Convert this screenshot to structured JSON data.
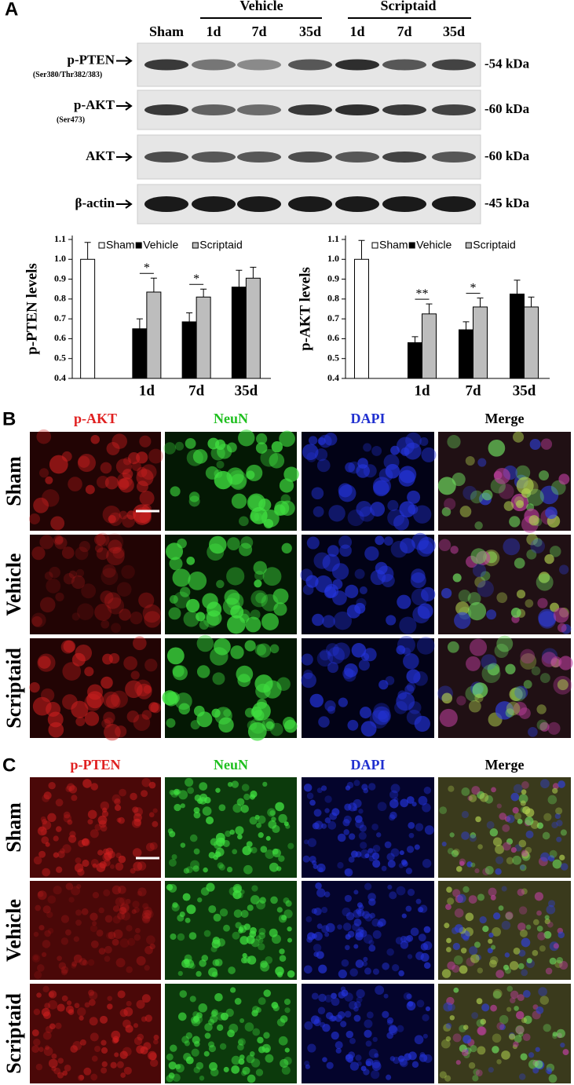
{
  "panel_a": {
    "label": "A",
    "groups": [
      "Vehicle",
      "Scriptaid"
    ],
    "lanes": [
      "Sham",
      "1d",
      "7d",
      "35d",
      "1d",
      "7d",
      "35d"
    ],
    "blots": [
      {
        "name": "p-PTEN",
        "site": "(Ser380/Thr382/383)",
        "size": "-54 kDa"
      },
      {
        "name": "p-AKT",
        "site": "(Ser473)",
        "size": "-60 kDa"
      },
      {
        "name": "AKT",
        "size": "-60 kDa"
      },
      {
        "name": "β-actin",
        "size": "-45 kDa"
      }
    ]
  },
  "chart_data": [
    {
      "type": "bar",
      "ylabel": "p-PTEN levels",
      "categories": [
        null,
        "1d",
        "7d",
        "35d"
      ],
      "series": [
        {
          "name": "Sham",
          "color": "#ffffff",
          "values": [
            1.0,
            null,
            null,
            null
          ],
          "errors": [
            0.085,
            null,
            null,
            null
          ]
        },
        {
          "name": "Vehicle",
          "color": "#000000",
          "values": [
            null,
            0.65,
            0.685,
            0.86
          ],
          "errors": [
            null,
            0.05,
            0.045,
            0.085
          ]
        },
        {
          "name": "Scriptaid",
          "color": "#bdbdbd",
          "values": [
            null,
            0.835,
            0.81,
            0.905
          ],
          "errors": [
            null,
            0.07,
            0.04,
            0.055
          ]
        }
      ],
      "significance": [
        null,
        "*",
        "*",
        null
      ],
      "ylim": [
        0.4,
        1.1
      ],
      "yticks": [
        0.4,
        0.5,
        0.6,
        0.7,
        0.8,
        0.9,
        {
          "value": 1,
          "label": "1.0"
        },
        1.1
      ],
      "legend": "top"
    },
    {
      "type": "bar",
      "ylabel": "p-AKT levels",
      "categories": [
        null,
        "1d",
        "7d",
        "35d"
      ],
      "series": [
        {
          "name": "Sham",
          "color": "#ffffff",
          "values": [
            1.0,
            null,
            null,
            null
          ],
          "errors": [
            0.095,
            null,
            null,
            null
          ]
        },
        {
          "name": "Vehicle",
          "color": "#000000",
          "values": [
            null,
            0.58,
            0.645,
            0.825
          ],
          "errors": [
            null,
            0.03,
            0.04,
            0.07
          ]
        },
        {
          "name": "Scriptaid",
          "color": "#bdbdbd",
          "values": [
            null,
            0.725,
            0.76,
            0.76
          ],
          "errors": [
            null,
            0.05,
            0.045,
            0.05
          ]
        }
      ],
      "significance": [
        null,
        "**",
        "*",
        null
      ],
      "ylim": [
        0.4,
        1.1
      ],
      "yticks": [
        0.4,
        0.5,
        0.6,
        0.7,
        0.8,
        0.9,
        {
          "value": 1,
          "label": "1.0"
        },
        1.1
      ],
      "legend": "top"
    }
  ],
  "panel_b": {
    "label": "B",
    "columns": [
      "p-AKT",
      "NeuN",
      "DAPI",
      "Merge"
    ],
    "rows": [
      "Sham",
      "Vehicle",
      "Scriptaid"
    ]
  },
  "panel_c": {
    "label": "C",
    "columns": [
      "p-PTEN",
      "NeuN",
      "DAPI",
      "Merge"
    ],
    "rows": [
      "Sham",
      "Vehicle",
      "Scriptaid"
    ]
  }
}
